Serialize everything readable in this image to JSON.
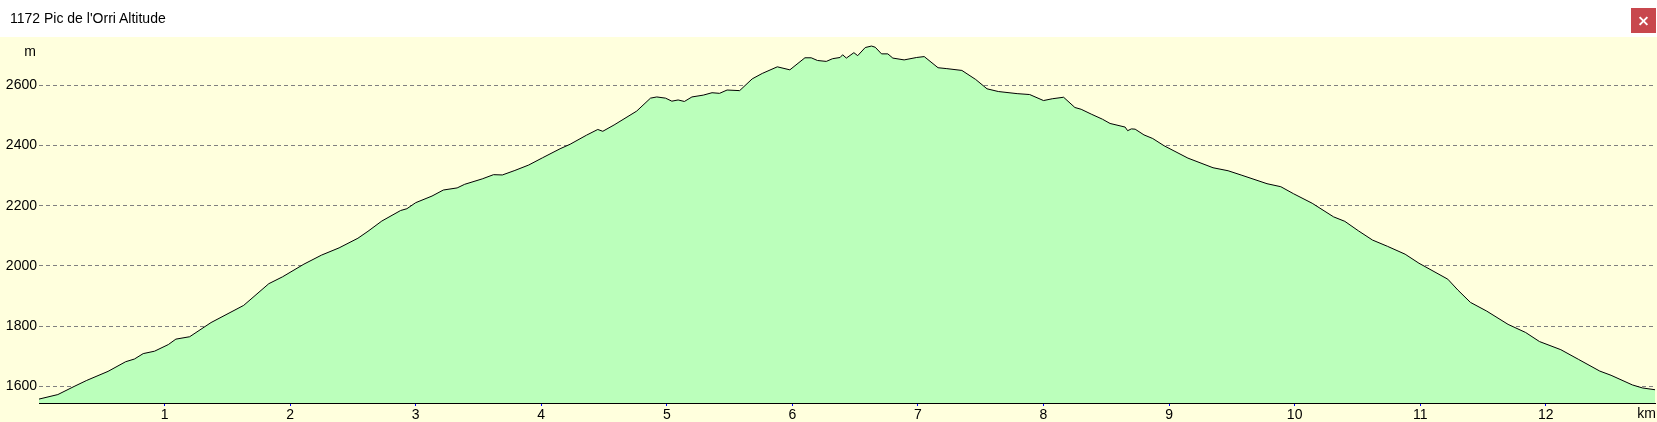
{
  "chart_data": {
    "type": "area",
    "title": "1172 Pic de l'Orri Altitude",
    "xlabel": "km",
    "ylabel": "m",
    "x": [
      0,
      0.15,
      0.28,
      0.38,
      0.55,
      0.69,
      0.76,
      0.83,
      0.92,
      1.03,
      1.09,
      1.2,
      1.37,
      1.63,
      1.83,
      1.94,
      2.11,
      2.25,
      2.39,
      2.54,
      2.62,
      2.73,
      2.88,
      2.93,
      3.0,
      3.13,
      3.22,
      3.33,
      3.39,
      3.53,
      3.62,
      3.69,
      3.79,
      3.9,
      4.01,
      4.15,
      4.23,
      4.36,
      4.45,
      4.49,
      4.58,
      4.76,
      4.87,
      4.92,
      4.99,
      5.04,
      5.09,
      5.14,
      5.2,
      5.29,
      5.36,
      5.42,
      5.48,
      5.58,
      5.68,
      5.76,
      5.88,
      5.98,
      6.1,
      6.15,
      6.2,
      6.27,
      6.32,
      6.38,
      6.4,
      6.43,
      6.49,
      6.52,
      6.58,
      6.63,
      6.66,
      6.71,
      6.76,
      6.8,
      6.89,
      6.99,
      7.05,
      7.16,
      7.23,
      7.35,
      7.46,
      7.55,
      7.64,
      7.79,
      7.89,
      8.0,
      8.07,
      8.16,
      8.25,
      8.3,
      8.38,
      8.47,
      8.53,
      8.65,
      8.67,
      8.7,
      8.73,
      8.8,
      8.87,
      8.96,
      9.15,
      9.35,
      9.47,
      9.58,
      9.78,
      9.89,
      9.99,
      10.14,
      10.31,
      10.4,
      10.51,
      10.62,
      10.74,
      10.88,
      10.99,
      11.22,
      11.3,
      11.4,
      11.53,
      11.7,
      11.84,
      11.95,
      12.12,
      12.26,
      12.43,
      12.52,
      12.69,
      12.77,
      12.87
    ],
    "values": [
      1558,
      1573,
      1600,
      1620,
      1650,
      1682,
      1691,
      1709,
      1717,
      1739,
      1757,
      1765,
      1812,
      1869,
      1941,
      1964,
      2006,
      2036,
      2060,
      2092,
      2115,
      2149,
      2184,
      2190,
      2210,
      2232,
      2252,
      2259,
      2271,
      2289,
      2303,
      2302,
      2317,
      2335,
      2359,
      2389,
      2404,
      2434,
      2453,
      2447,
      2468,
      2514,
      2557,
      2561,
      2557,
      2547,
      2551,
      2546,
      2561,
      2567,
      2575,
      2573,
      2584,
      2582,
      2621,
      2639,
      2661,
      2651,
      2691,
      2691,
      2682,
      2679,
      2688,
      2692,
      2701,
      2690,
      2708,
      2698,
      2725,
      2730,
      2726,
      2704,
      2704,
      2690,
      2684,
      2692,
      2695,
      2658,
      2655,
      2649,
      2619,
      2588,
      2579,
      2572,
      2569,
      2549,
      2555,
      2560,
      2526,
      2520,
      2504,
      2487,
      2473,
      2461,
      2449,
      2455,
      2454,
      2435,
      2423,
      2399,
      2358,
      2326,
      2316,
      2301,
      2273,
      2263,
      2240,
      2208,
      2163,
      2148,
      2116,
      2086,
      2065,
      2039,
      2009,
      1956,
      1920,
      1879,
      1850,
      1806,
      1779,
      1749,
      1722,
      1690,
      1651,
      1637,
      1605,
      1595,
      1589
    ],
    "color": "#bbffbb",
    "xlim": [
      0,
      12.87
    ],
    "xticks": [
      1,
      2,
      3,
      4,
      5,
      6,
      7,
      8,
      9,
      10,
      11,
      12
    ],
    "ylim": [
      1545,
      2760
    ],
    "yticks": [
      1600,
      1800,
      2000,
      2200,
      2400,
      2600
    ],
    "grid": "y"
  }
}
